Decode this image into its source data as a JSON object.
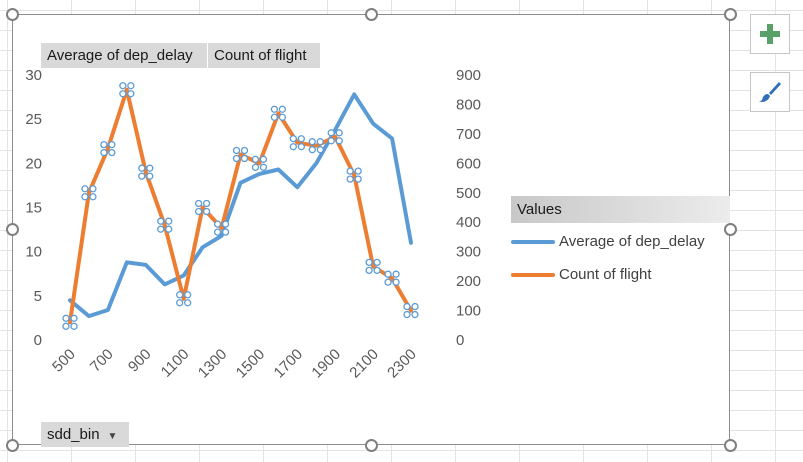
{
  "pivot_fields": {
    "value_field_1": "Average of dep_delay",
    "value_field_2": "Count of flight",
    "axis_field": "sdd_bin"
  },
  "legend": {
    "title": "Values",
    "items": [
      "Average of dep_delay",
      "Count of flight"
    ]
  },
  "colors": {
    "avg_series": "#5b9bd5",
    "count_series": "#ed7d31",
    "selection_marker": "#5b9bd5",
    "add_button_icon": "#5aa169",
    "brush_icon": "#2f6fb8"
  },
  "side_buttons": {
    "add_icon": "plus-icon",
    "style_icon": "paintbrush-icon"
  },
  "chart_data": {
    "type": "line",
    "x": [
      500,
      600,
      700,
      800,
      900,
      1000,
      1100,
      1200,
      1300,
      1400,
      1500,
      1600,
      1700,
      1800,
      1900,
      2000,
      2100,
      2200,
      2300
    ],
    "x_tick_labels": [
      "500",
      "700",
      "900",
      "1100",
      "1300",
      "1500",
      "1700",
      "1900",
      "2100",
      "2300"
    ],
    "y_ticks_left": [
      "0",
      "5",
      "10",
      "15",
      "20",
      "25",
      "30"
    ],
    "y_ticks_right": [
      "0",
      "100",
      "200",
      "300",
      "400",
      "500",
      "600",
      "700",
      "800",
      "900"
    ],
    "ylim_left": [
      0,
      30
    ],
    "ylim_right": [
      0,
      900
    ],
    "grid": false,
    "legend_position": "right",
    "series": [
      {
        "name": "Average of dep_delay",
        "axis": "left",
        "values": [
          4.5,
          2.7,
          3.4,
          8.8,
          8.5,
          6.3,
          7.3,
          10.5,
          11.8,
          17.8,
          18.8,
          19.3,
          17.3,
          20.0,
          23.8,
          27.8,
          24.5,
          22.8,
          11.0
        ]
      },
      {
        "name": "Count of flight",
        "axis": "right",
        "values": [
          60,
          500,
          650,
          850,
          570,
          390,
          140,
          450,
          380,
          630,
          600,
          770,
          670,
          660,
          690,
          560,
          250,
          210,
          100
        ],
        "selected_points": true
      }
    ]
  }
}
